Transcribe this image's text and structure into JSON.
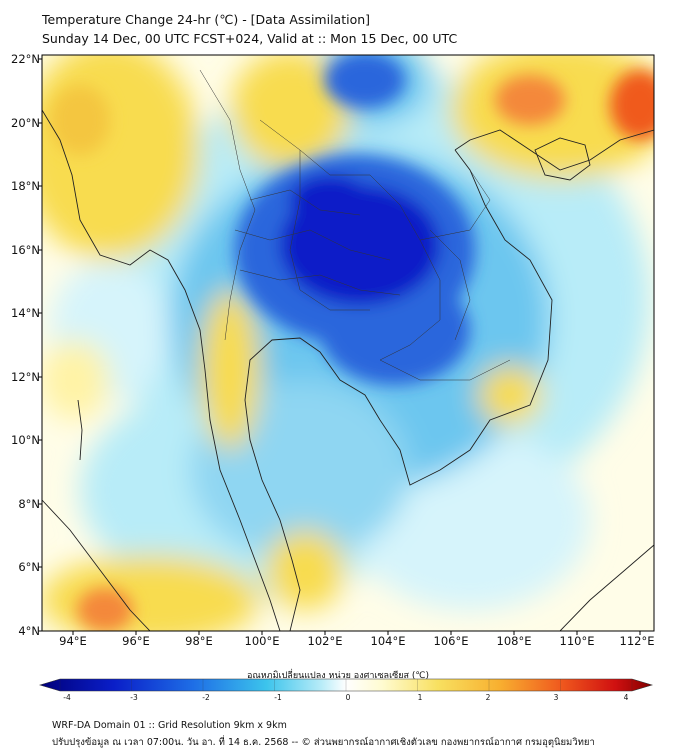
{
  "header": {
    "title": "Temperature Change 24-hr (℃) - [Data Assimilation]",
    "subtitle": "Sunday 14 Dec, 00 UTC FCST+024, Valid at :: Mon 15 Dec, 00 UTC"
  },
  "map": {
    "lat_labels": [
      "22°N",
      "20°N",
      "18°N",
      "16°N",
      "14°N",
      "12°N",
      "10°N",
      "8°N",
      "6°N",
      "4°N"
    ],
    "lon_labels": [
      "94°E",
      "96°E",
      "98°E",
      "100°E",
      "102°E",
      "104°E",
      "106°E",
      "108°E",
      "110°E",
      "112°E"
    ],
    "lat_range": [
      4,
      22.2
    ],
    "lon_range": [
      93,
      112.4
    ],
    "colors": {
      "strong_cooling": "#0a1ec8",
      "cooling": "#3aa0e6",
      "slight_cooling": "#b8ecf8",
      "neutral": "#fffde8",
      "warming": "#f8dc50",
      "strong_warming": "#f05a1e",
      "coastline": "#222222"
    }
  },
  "colorbar": {
    "title": "อุณหภูมิเปลี่ยนแปลง หน่วย องศาเซลเซียส (℃)",
    "ticks": [
      "-4",
      "-3",
      "-2",
      "-1",
      "0",
      "1",
      "2",
      "3",
      "4"
    ],
    "min": -4,
    "max": 4
  },
  "footer": {
    "line1": "WRF-DA Domain 01 :: Grid Resolution 9km x 9km",
    "line2": "ปรับปรุงข้อมูล ณ เวลา 07:00น. วัน อา. ที่ 14 ธ.ค. 2568 -- © ส่วนพยากรณ์อากาศเชิงตัวเลข กองพยากรณ์อากาศ กรมอุตุนิยมวิทยา"
  }
}
